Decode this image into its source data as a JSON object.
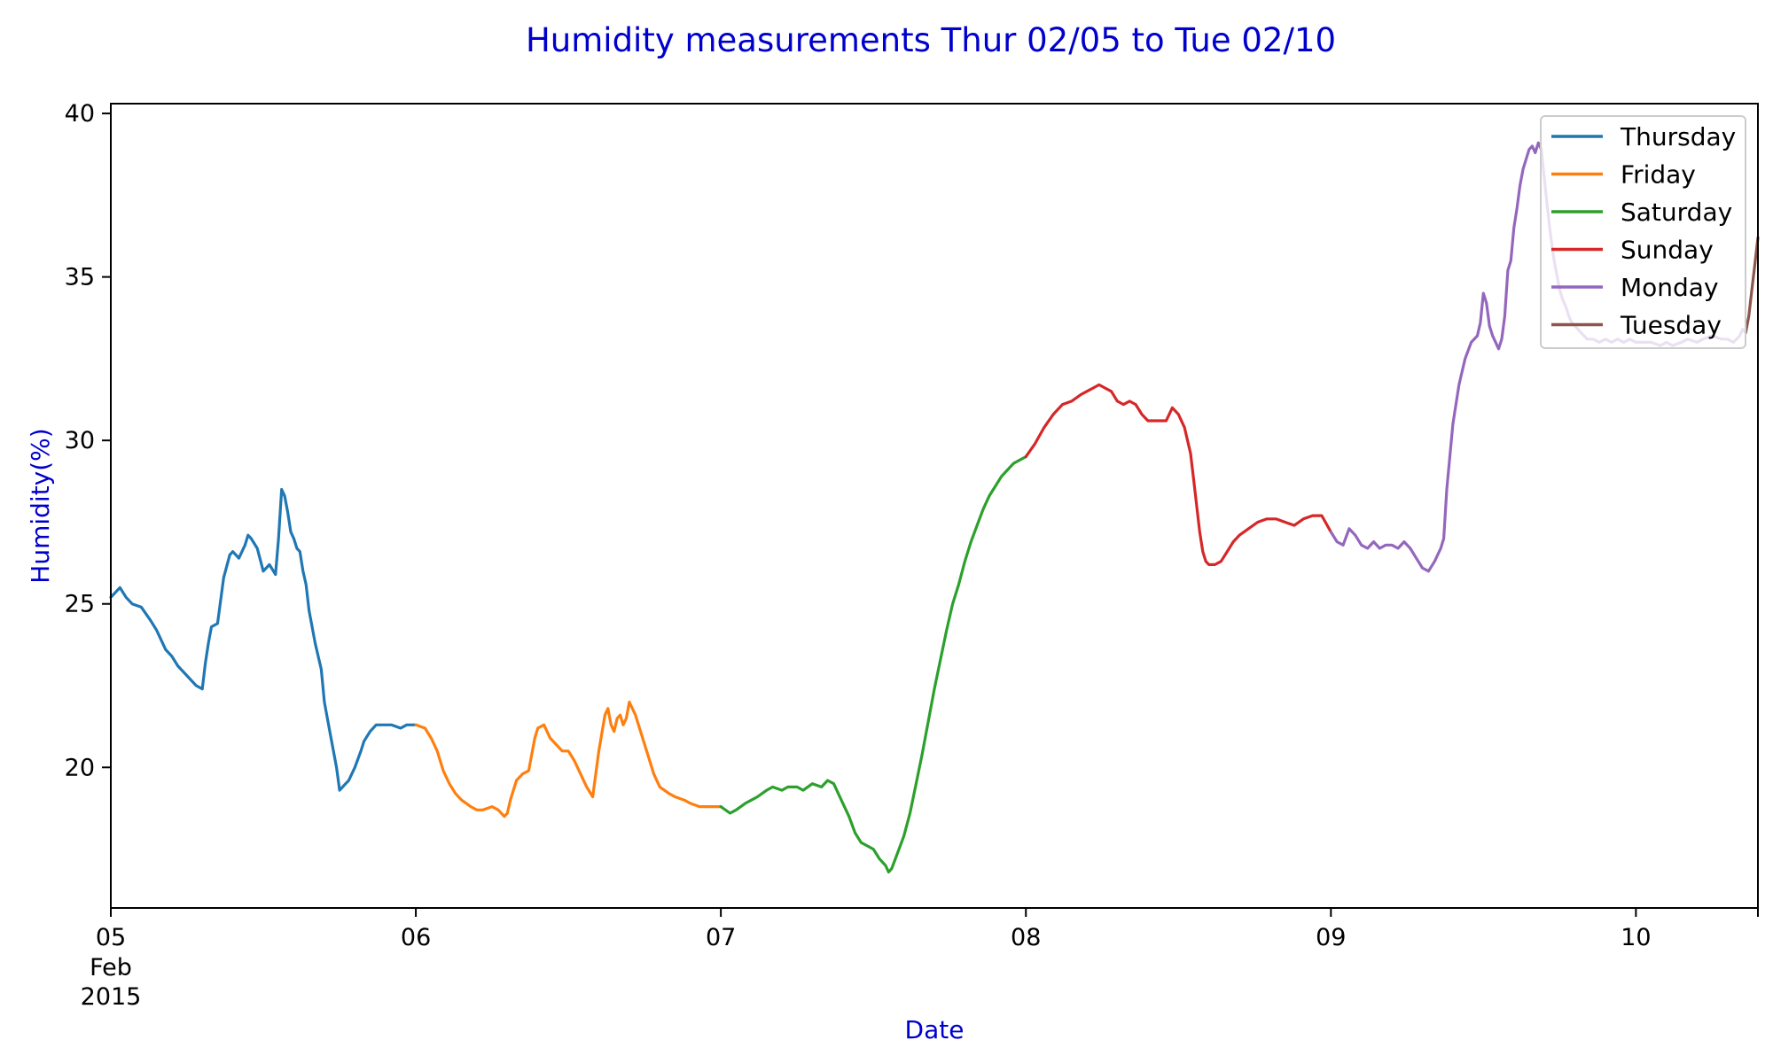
{
  "chart_data": {
    "type": "line",
    "title": "Humidity measurements Thur 02/05 to Tue 02/10",
    "xlabel": "Date",
    "ylabel": "Humidity(%)",
    "xlim": [
      0,
      5.4
    ],
    "ylim": [
      15.7,
      40.3
    ],
    "grid": false,
    "legend_position": "top-right",
    "title_color": "#0000cc",
    "label_color": "#0000cc",
    "x_ticks": [
      {
        "value": 0,
        "label": "05",
        "sub": [
          "Feb",
          "2015"
        ]
      },
      {
        "value": 1,
        "label": "06"
      },
      {
        "value": 2,
        "label": "07"
      },
      {
        "value": 3,
        "label": "08"
      },
      {
        "value": 4,
        "label": "09"
      },
      {
        "value": 5,
        "label": "10"
      }
    ],
    "y_ticks": [
      20,
      25,
      30,
      35,
      40
    ],
    "series": [
      {
        "name": "Thursday",
        "color": "#1f77b4",
        "x": [
          0,
          0.03,
          0.05,
          0.07,
          0.1,
          0.13,
          0.15,
          0.18,
          0.2,
          0.22,
          0.25,
          0.28,
          0.3,
          0.31,
          0.32,
          0.33,
          0.35,
          0.37,
          0.39,
          0.4,
          0.42,
          0.44,
          0.45,
          0.46,
          0.48,
          0.5,
          0.52,
          0.54,
          0.55,
          0.56,
          0.57,
          0.58,
          0.59,
          0.6,
          0.61,
          0.62,
          0.63,
          0.64,
          0.65,
          0.67,
          0.69,
          0.7,
          0.72,
          0.74,
          0.75,
          0.77,
          0.78,
          0.8,
          0.82,
          0.83,
          0.85,
          0.87,
          0.9,
          0.92,
          0.95,
          0.97,
          1.0
        ],
        "y": [
          25.2,
          25.5,
          25.2,
          25.0,
          24.9,
          24.5,
          24.2,
          23.6,
          23.4,
          23.1,
          22.8,
          22.5,
          22.4,
          23.2,
          23.8,
          24.3,
          24.4,
          25.8,
          26.5,
          26.6,
          26.4,
          26.8,
          27.1,
          27.0,
          26.7,
          26.0,
          26.2,
          25.9,
          27.0,
          28.5,
          28.3,
          27.8,
          27.2,
          27.0,
          26.7,
          26.6,
          26.0,
          25.6,
          24.8,
          23.8,
          23.0,
          22.0,
          21.0,
          20.0,
          19.3,
          19.5,
          19.6,
          20.0,
          20.5,
          20.8,
          21.1,
          21.3,
          21.3,
          21.3,
          21.2,
          21.3,
          21.3
        ]
      },
      {
        "name": "Friday",
        "color": "#ff7f0e",
        "x": [
          1.0,
          1.03,
          1.05,
          1.07,
          1.09,
          1.11,
          1.13,
          1.15,
          1.18,
          1.2,
          1.22,
          1.25,
          1.27,
          1.29,
          1.3,
          1.31,
          1.33,
          1.35,
          1.37,
          1.39,
          1.4,
          1.42,
          1.44,
          1.46,
          1.48,
          1.5,
          1.52,
          1.54,
          1.56,
          1.58,
          1.6,
          1.62,
          1.63,
          1.64,
          1.65,
          1.66,
          1.67,
          1.68,
          1.69,
          1.7,
          1.72,
          1.74,
          1.76,
          1.78,
          1.8,
          1.83,
          1.85,
          1.88,
          1.9,
          1.93,
          1.95,
          1.97,
          2.0
        ],
        "y": [
          21.3,
          21.2,
          20.9,
          20.5,
          19.9,
          19.5,
          19.2,
          19.0,
          18.8,
          18.7,
          18.7,
          18.8,
          18.7,
          18.5,
          18.6,
          19.0,
          19.6,
          19.8,
          19.9,
          20.9,
          21.2,
          21.3,
          20.9,
          20.7,
          20.5,
          20.5,
          20.2,
          19.8,
          19.4,
          19.1,
          20.5,
          21.6,
          21.8,
          21.3,
          21.1,
          21.5,
          21.6,
          21.3,
          21.5,
          22.0,
          21.6,
          21.0,
          20.4,
          19.8,
          19.4,
          19.2,
          19.1,
          19.0,
          18.9,
          18.8,
          18.8,
          18.8,
          18.8
        ]
      },
      {
        "name": "Saturday",
        "color": "#2ca02c",
        "x": [
          2.0,
          2.03,
          2.05,
          2.08,
          2.1,
          2.12,
          2.15,
          2.17,
          2.2,
          2.22,
          2.25,
          2.27,
          2.3,
          2.33,
          2.35,
          2.37,
          2.38,
          2.4,
          2.42,
          2.44,
          2.46,
          2.48,
          2.5,
          2.52,
          2.54,
          2.55,
          2.56,
          2.58,
          2.6,
          2.62,
          2.64,
          2.66,
          2.68,
          2.7,
          2.72,
          2.74,
          2.76,
          2.78,
          2.8,
          2.82,
          2.84,
          2.86,
          2.88,
          2.9,
          2.92,
          2.94,
          2.96,
          2.98,
          3.0
        ],
        "y": [
          18.8,
          18.6,
          18.7,
          18.9,
          19.0,
          19.1,
          19.3,
          19.4,
          19.3,
          19.4,
          19.4,
          19.3,
          19.5,
          19.4,
          19.6,
          19.5,
          19.3,
          18.9,
          18.5,
          18.0,
          17.7,
          17.6,
          17.5,
          17.2,
          17.0,
          16.8,
          16.9,
          17.4,
          17.9,
          18.6,
          19.5,
          20.4,
          21.4,
          22.4,
          23.3,
          24.2,
          25.0,
          25.6,
          26.3,
          26.9,
          27.4,
          27.9,
          28.3,
          28.6,
          28.9,
          29.1,
          29.3,
          29.4,
          29.5
        ]
      },
      {
        "name": "Sunday",
        "color": "#d62728",
        "x": [
          3.0,
          3.03,
          3.06,
          3.09,
          3.12,
          3.15,
          3.18,
          3.2,
          3.22,
          3.24,
          3.26,
          3.28,
          3.3,
          3.32,
          3.34,
          3.36,
          3.38,
          3.4,
          3.42,
          3.44,
          3.46,
          3.48,
          3.5,
          3.52,
          3.54,
          3.55,
          3.56,
          3.57,
          3.58,
          3.59,
          3.6,
          3.62,
          3.64,
          3.66,
          3.68,
          3.7,
          3.73,
          3.76,
          3.79,
          3.82,
          3.85,
          3.88,
          3.91,
          3.94,
          3.97,
          4.0
        ],
        "y": [
          29.5,
          29.9,
          30.4,
          30.8,
          31.1,
          31.2,
          31.4,
          31.5,
          31.6,
          31.7,
          31.6,
          31.5,
          31.2,
          31.1,
          31.2,
          31.1,
          30.8,
          30.6,
          30.6,
          30.6,
          30.6,
          31.0,
          30.8,
          30.4,
          29.6,
          28.8,
          28.0,
          27.2,
          26.6,
          26.3,
          26.2,
          26.2,
          26.3,
          26.6,
          26.9,
          27.1,
          27.3,
          27.5,
          27.6,
          27.6,
          27.5,
          27.4,
          27.6,
          27.7,
          27.7,
          27.2
        ]
      },
      {
        "name": "Monday",
        "color": "#9467bd",
        "x": [
          4.0,
          4.02,
          4.04,
          4.06,
          4.08,
          4.1,
          4.12,
          4.14,
          4.16,
          4.18,
          4.2,
          4.22,
          4.24,
          4.26,
          4.28,
          4.3,
          4.32,
          4.34,
          4.36,
          4.37,
          4.38,
          4.4,
          4.42,
          4.44,
          4.46,
          4.48,
          4.49,
          4.5,
          4.51,
          4.52,
          4.53,
          4.54,
          4.55,
          4.56,
          4.57,
          4.58,
          4.59,
          4.6,
          4.61,
          4.62,
          4.63,
          4.64,
          4.65,
          4.66,
          4.67,
          4.68,
          4.69,
          4.7,
          4.71,
          4.72,
          4.73,
          4.74,
          4.75,
          4.76,
          4.77,
          4.78,
          4.79,
          4.8,
          4.81,
          4.82,
          4.84,
          4.86,
          4.88,
          4.9,
          4.92,
          4.94,
          4.96,
          4.98,
          5.0,
          5.02,
          5.05,
          5.08,
          5.1,
          5.12,
          5.15,
          5.17,
          5.2,
          5.22,
          5.25,
          5.28,
          5.3,
          5.32,
          5.34,
          5.35,
          5.36
        ],
        "y": [
          27.2,
          26.9,
          26.8,
          27.3,
          27.1,
          26.8,
          26.7,
          26.9,
          26.7,
          26.8,
          26.8,
          26.7,
          26.9,
          26.7,
          26.4,
          26.1,
          26.0,
          26.3,
          26.7,
          27.0,
          28.5,
          30.5,
          31.7,
          32.5,
          33.0,
          33.2,
          33.6,
          34.5,
          34.2,
          33.5,
          33.2,
          33.0,
          32.8,
          33.1,
          33.8,
          35.2,
          35.5,
          36.5,
          37.1,
          37.8,
          38.3,
          38.6,
          38.9,
          39.0,
          38.8,
          39.1,
          38.9,
          38.0,
          37.1,
          36.3,
          35.6,
          35.1,
          34.6,
          34.3,
          34.1,
          33.8,
          33.6,
          33.5,
          33.4,
          33.3,
          33.1,
          33.1,
          33.0,
          33.1,
          33.0,
          33.1,
          33.0,
          33.1,
          33.0,
          33.0,
          33.0,
          32.9,
          33.0,
          32.9,
          33.0,
          33.1,
          33.0,
          33.1,
          33.2,
          33.1,
          33.1,
          33.0,
          33.2,
          33.4,
          33.3
        ]
      },
      {
        "name": "Tuesday",
        "color": "#8c564b",
        "x": [
          5.36,
          5.37,
          5.38,
          5.39,
          5.4
        ],
        "y": [
          33.3,
          33.8,
          34.6,
          35.4,
          36.2
        ]
      }
    ]
  }
}
